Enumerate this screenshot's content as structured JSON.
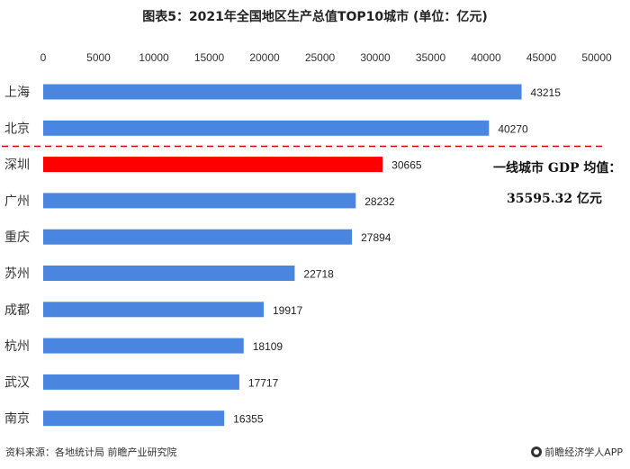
{
  "title": "图表5：2021年全国地区生产总值TOP10城市 (单位：亿元)",
  "annotation": {
    "line1": "一线城市 GDP 均值：",
    "line2": "35595.32 亿元"
  },
  "footer": {
    "source": "资料来源：各地统计局 前瞻产业研究院",
    "brand": "前瞻经济学人APP"
  },
  "colors": {
    "bar": "#4a86e0",
    "highlight_bar": "#ff0000",
    "dashed_line": "#cc0000"
  },
  "chart_data": {
    "type": "bar",
    "orientation": "horizontal",
    "categories": [
      "上海",
      "北京",
      "深圳",
      "广州",
      "重庆",
      "苏州",
      "成都",
      "杭州",
      "武汉",
      "南京"
    ],
    "values": [
      43215,
      40270,
      30665,
      28232,
      27894,
      22718,
      19917,
      18109,
      17717,
      16355
    ],
    "highlight_index": 2,
    "xlim": [
      0,
      50000
    ],
    "xticks": [
      0,
      5000,
      10000,
      15000,
      20000,
      25000,
      30000,
      35000,
      40000,
      45000,
      50000
    ],
    "x_axis_position": "top",
    "grid": false,
    "separator": "dashed line between 北京 and 深圳",
    "title": "图表5：2021年全国地区生产总值TOP10城市 (单位：亿元)",
    "xlabel": "",
    "ylabel": ""
  }
}
